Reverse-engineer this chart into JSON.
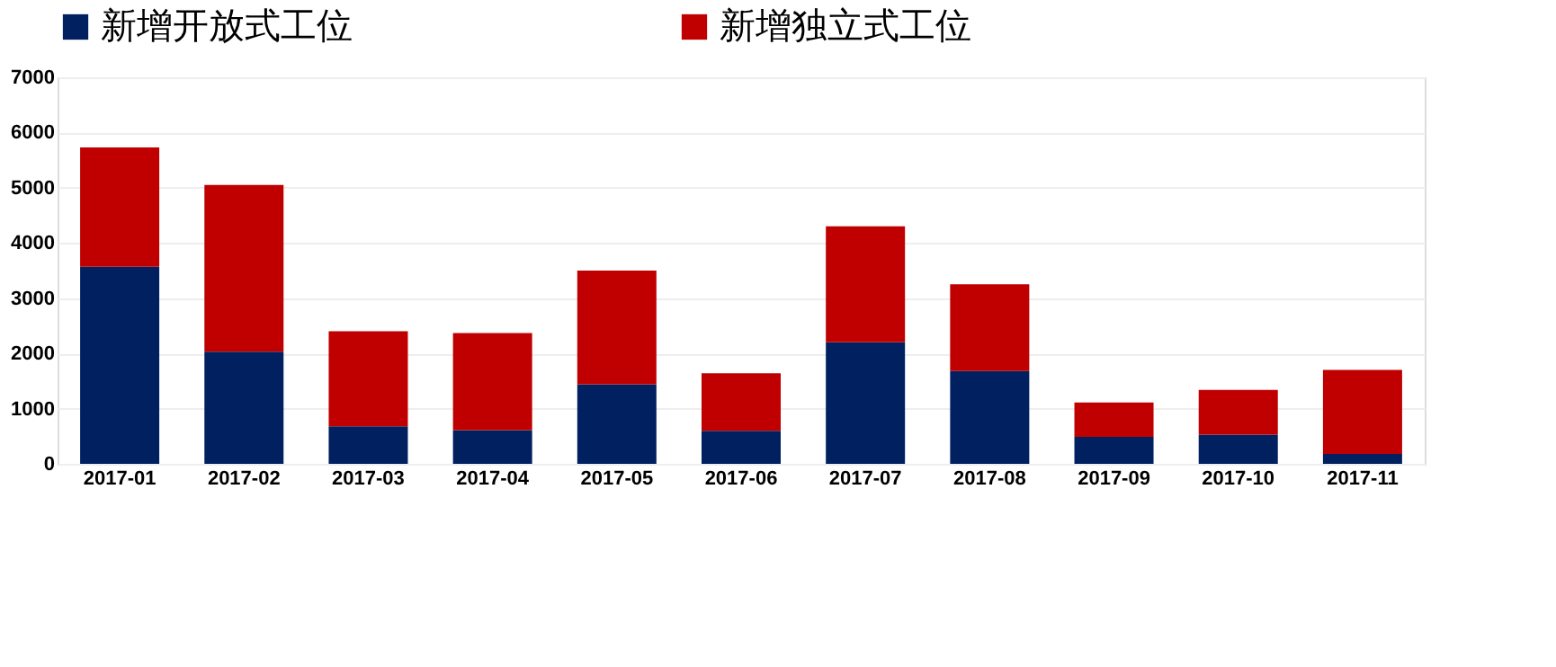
{
  "chart_data": {
    "type": "bar",
    "stacked": true,
    "legend": "top",
    "categories": [
      "2017-01",
      "2017-02",
      "2017-03",
      "2017-04",
      "2017-05",
      "2017-06",
      "2017-07",
      "2017-08",
      "2017-09",
      "2017-10",
      "2017-11"
    ],
    "series": [
      {
        "name": "新增开放式工位",
        "color": "#002060",
        "values": [
          3570,
          2030,
          680,
          610,
          1440,
          600,
          2200,
          1680,
          490,
          530,
          180
        ]
      },
      {
        "name": "新增独立式工位",
        "color": "#c00000",
        "values": [
          2160,
          3020,
          1720,
          1760,
          2060,
          1040,
          2100,
          1570,
          620,
          810,
          1520
        ]
      }
    ],
    "ylim": [
      0,
      7000
    ],
    "yticks": [
      0,
      1000,
      2000,
      3000,
      4000,
      5000,
      6000,
      7000
    ],
    "grid": "y"
  }
}
